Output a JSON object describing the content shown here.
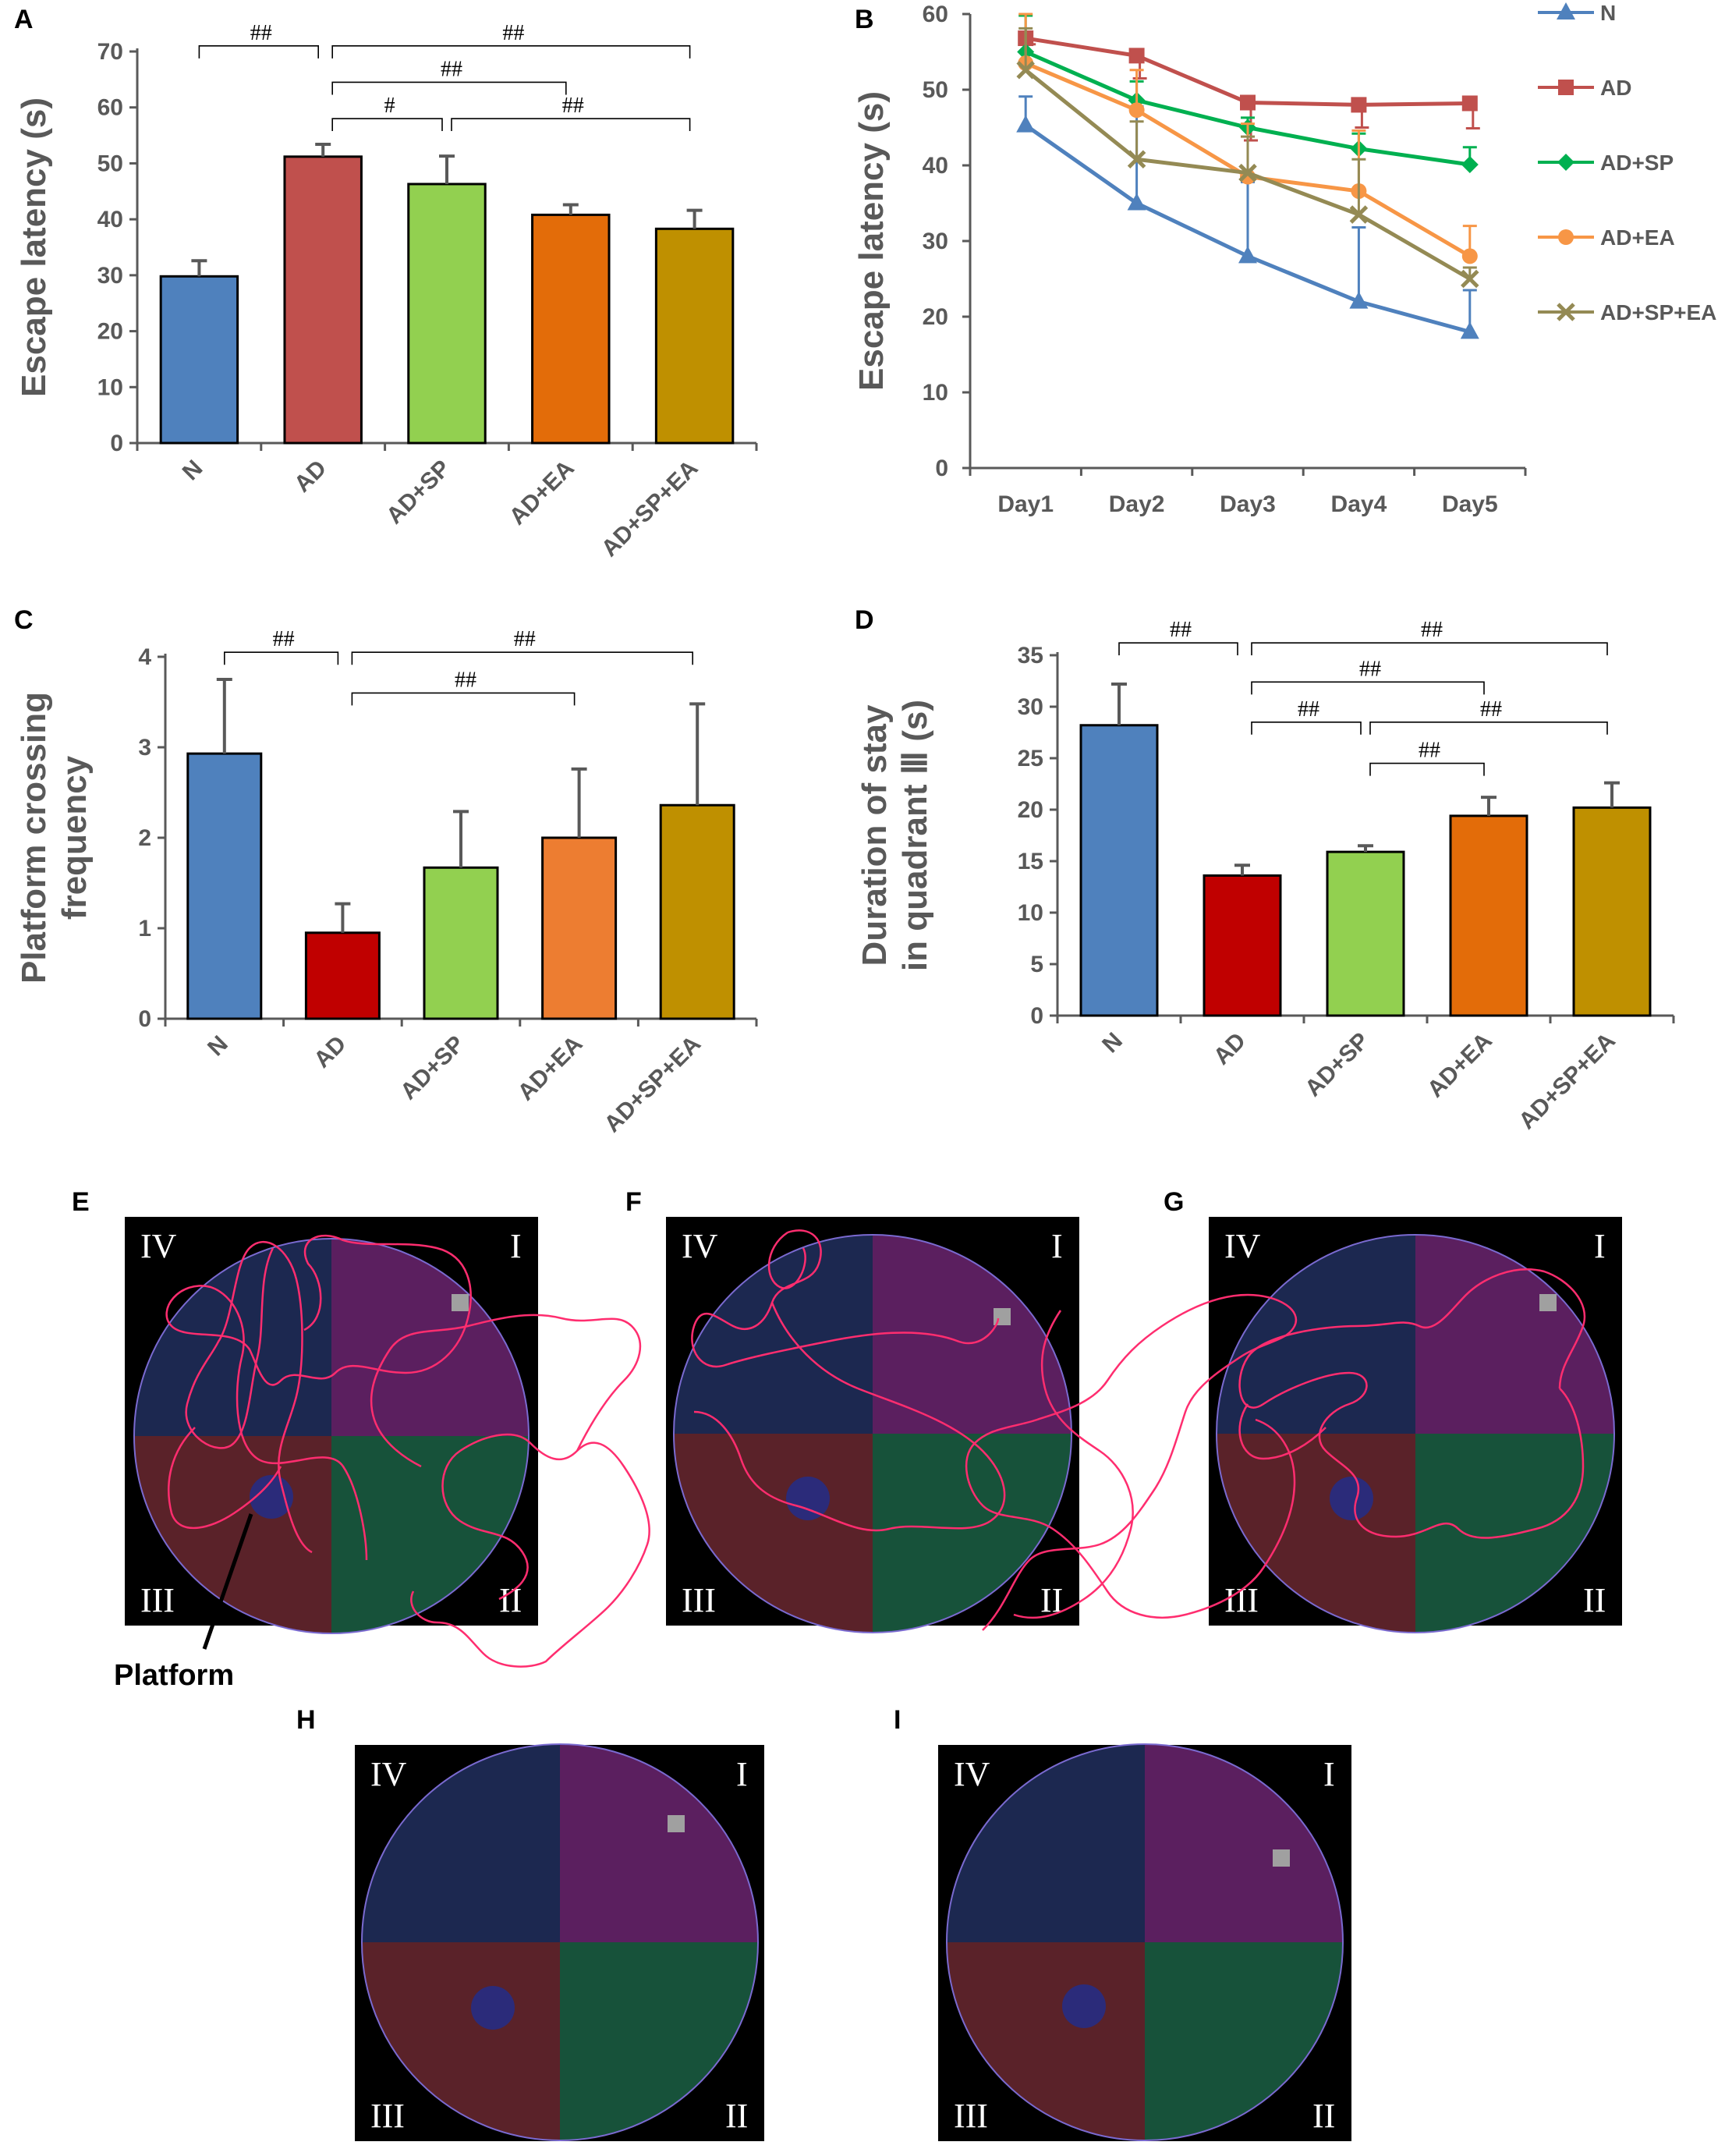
{
  "colors": {
    "N": "#4f81bd",
    "AD_A": "#c0504d",
    "AD_red": "#c00000",
    "AD_SP": "#92d050",
    "AD_EA": "#e36c09",
    "AD_EA_light": "#f79646",
    "AD_SP_EA": "#bf9000",
    "line_N": "#4f81bd",
    "line_AD": "#c0504d",
    "line_AD_SP": "#00b050",
    "line_AD_EA": "#f79646",
    "line_AD_SP_EA": "#948a54",
    "axis": "#595959",
    "path": "#ff2d6f",
    "q1": "#5b1f5f",
    "q2": "#17523a",
    "q3": "#5a2229",
    "q4": "#1c2850",
    "platform": "#2b2b7a",
    "marker": "#a0a0a0"
  },
  "chart_data": [
    {
      "panel": "A",
      "type": "bar",
      "ylabel": "Escape  latency (s)",
      "ylim": [
        0,
        70
      ],
      "yticks": [
        0,
        10,
        20,
        30,
        40,
        50,
        60,
        70
      ],
      "categories": [
        "N",
        "AD",
        "AD+SP",
        "AD+EA",
        "AD+SP+EA"
      ],
      "values": [
        29.8,
        51.2,
        46.3,
        40.8,
        38.3
      ],
      "errors": [
        2.8,
        2.2,
        5.0,
        1.8,
        3.3
      ],
      "bar_colors": [
        "#4f81bd",
        "#c0504d",
        "#92d050",
        "#e36c09",
        "#bf9000"
      ],
      "significance": [
        {
          "from": 0,
          "to": 1,
          "label": "##",
          "level": 71
        },
        {
          "from": 1,
          "to": 4,
          "label": "##",
          "level": 71
        },
        {
          "from": 1,
          "to": 3,
          "label": "##",
          "level": 64.5
        },
        {
          "from": 1,
          "to": 2,
          "label": "#",
          "level": 58
        },
        {
          "from": 2,
          "to": 4,
          "label": "##",
          "level": 58
        }
      ]
    },
    {
      "panel": "B",
      "type": "line",
      "ylabel": "Escape latency (s)",
      "ylim": [
        0,
        60
      ],
      "yticks": [
        0,
        10,
        20,
        30,
        40,
        50,
        60
      ],
      "categories": [
        "Day1",
        "Day2",
        "Day3",
        "Day4",
        "Day5"
      ],
      "series": [
        {
          "name": "N",
          "marker": "triangle",
          "color": "#4f81bd",
          "values": [
            45.3,
            35.0,
            28.0,
            22.0,
            18.0
          ],
          "errors": [
            3.8,
            12.8,
            9.8,
            9.8,
            5.5
          ]
        },
        {
          "name": "AD",
          "marker": "square",
          "color": "#c0504d",
          "values": [
            56.8,
            54.5,
            48.3,
            48.0,
            48.2
          ],
          "errors": [
            0.8,
            3.0,
            5.0,
            3.0,
            3.3
          ]
        },
        {
          "name": "AD+SP",
          "marker": "diamond",
          "color": "#00b050",
          "values": [
            55.0,
            48.6,
            45.0,
            42.2,
            40.1
          ],
          "errors": [
            4.8,
            2.5,
            1.3,
            2.0,
            2.3
          ]
        },
        {
          "name": "AD+EA",
          "marker": "circle",
          "color": "#f79646",
          "values": [
            53.5,
            47.3,
            38.5,
            36.6,
            28.0
          ],
          "errors": [
            6.5,
            5.3,
            7.0,
            8.0,
            4.0
          ]
        },
        {
          "name": "AD+SP+EA",
          "marker": "x",
          "color": "#948a54",
          "values": [
            52.6,
            40.8,
            39.0,
            33.5,
            25.0
          ],
          "errors": [
            5.5,
            5.0,
            4.8,
            7.3,
            1.5
          ]
        }
      ]
    },
    {
      "panel": "C",
      "type": "bar",
      "ylabel_lines": [
        "Platform crossing",
        "frequency"
      ],
      "ylim": [
        0,
        4
      ],
      "yticks": [
        0,
        1,
        2,
        3,
        4
      ],
      "categories": [
        "N",
        "AD",
        "AD+SP",
        "AD+EA",
        "AD+SP+EA"
      ],
      "values": [
        2.93,
        0.95,
        1.67,
        2.0,
        2.36
      ],
      "errors": [
        0.82,
        0.32,
        0.62,
        0.76,
        1.12
      ],
      "bar_colors": [
        "#4f81bd",
        "#c00000",
        "#92d050",
        "#ed7d31",
        "#bf9000"
      ],
      "significance": [
        {
          "from": 0,
          "to": 1,
          "label": "##",
          "level": 4.05
        },
        {
          "from": 1,
          "to": 4,
          "label": "##",
          "level": 4.05
        },
        {
          "from": 1,
          "to": 3,
          "label": "##",
          "level": 3.6
        }
      ]
    },
    {
      "panel": "D",
      "type": "bar",
      "ylabel_lines": [
        "Duration  of stay",
        "in quadrant Ⅲ (s)"
      ],
      "ylim": [
        0,
        35
      ],
      "yticks": [
        0,
        5,
        10,
        15,
        20,
        25,
        30,
        35
      ],
      "categories": [
        "N",
        "AD",
        "AD+SP",
        "AD+EA",
        "AD+SP+EA"
      ],
      "values": [
        28.2,
        13.6,
        15.9,
        19.4,
        20.2
      ],
      "errors": [
        4.0,
        1.0,
        0.6,
        1.8,
        2.4
      ],
      "bar_colors": [
        "#4f81bd",
        "#c00000",
        "#92d050",
        "#e36c09",
        "#bf9000"
      ],
      "significance": [
        {
          "from": 0,
          "to": 1,
          "label": "##",
          "level": 36.2
        },
        {
          "from": 1,
          "to": 4,
          "label": "##",
          "level": 36.2
        },
        {
          "from": 1,
          "to": 3,
          "label": "##",
          "level": 32.4
        },
        {
          "from": 1,
          "to": 2,
          "label": "##",
          "level": 28.5
        },
        {
          "from": 2,
          "to": 4,
          "label": "##",
          "level": 28.5
        },
        {
          "from": 2,
          "to": 3,
          "label": "##",
          "level": 24.5
        }
      ]
    }
  ],
  "swim_maps": {
    "quadrant_labels": {
      "I": "I",
      "II": "II",
      "III": "III",
      "IV": "IV"
    },
    "platform_label": "Platform",
    "panels": [
      "E",
      "F",
      "G",
      "H",
      "I"
    ]
  }
}
